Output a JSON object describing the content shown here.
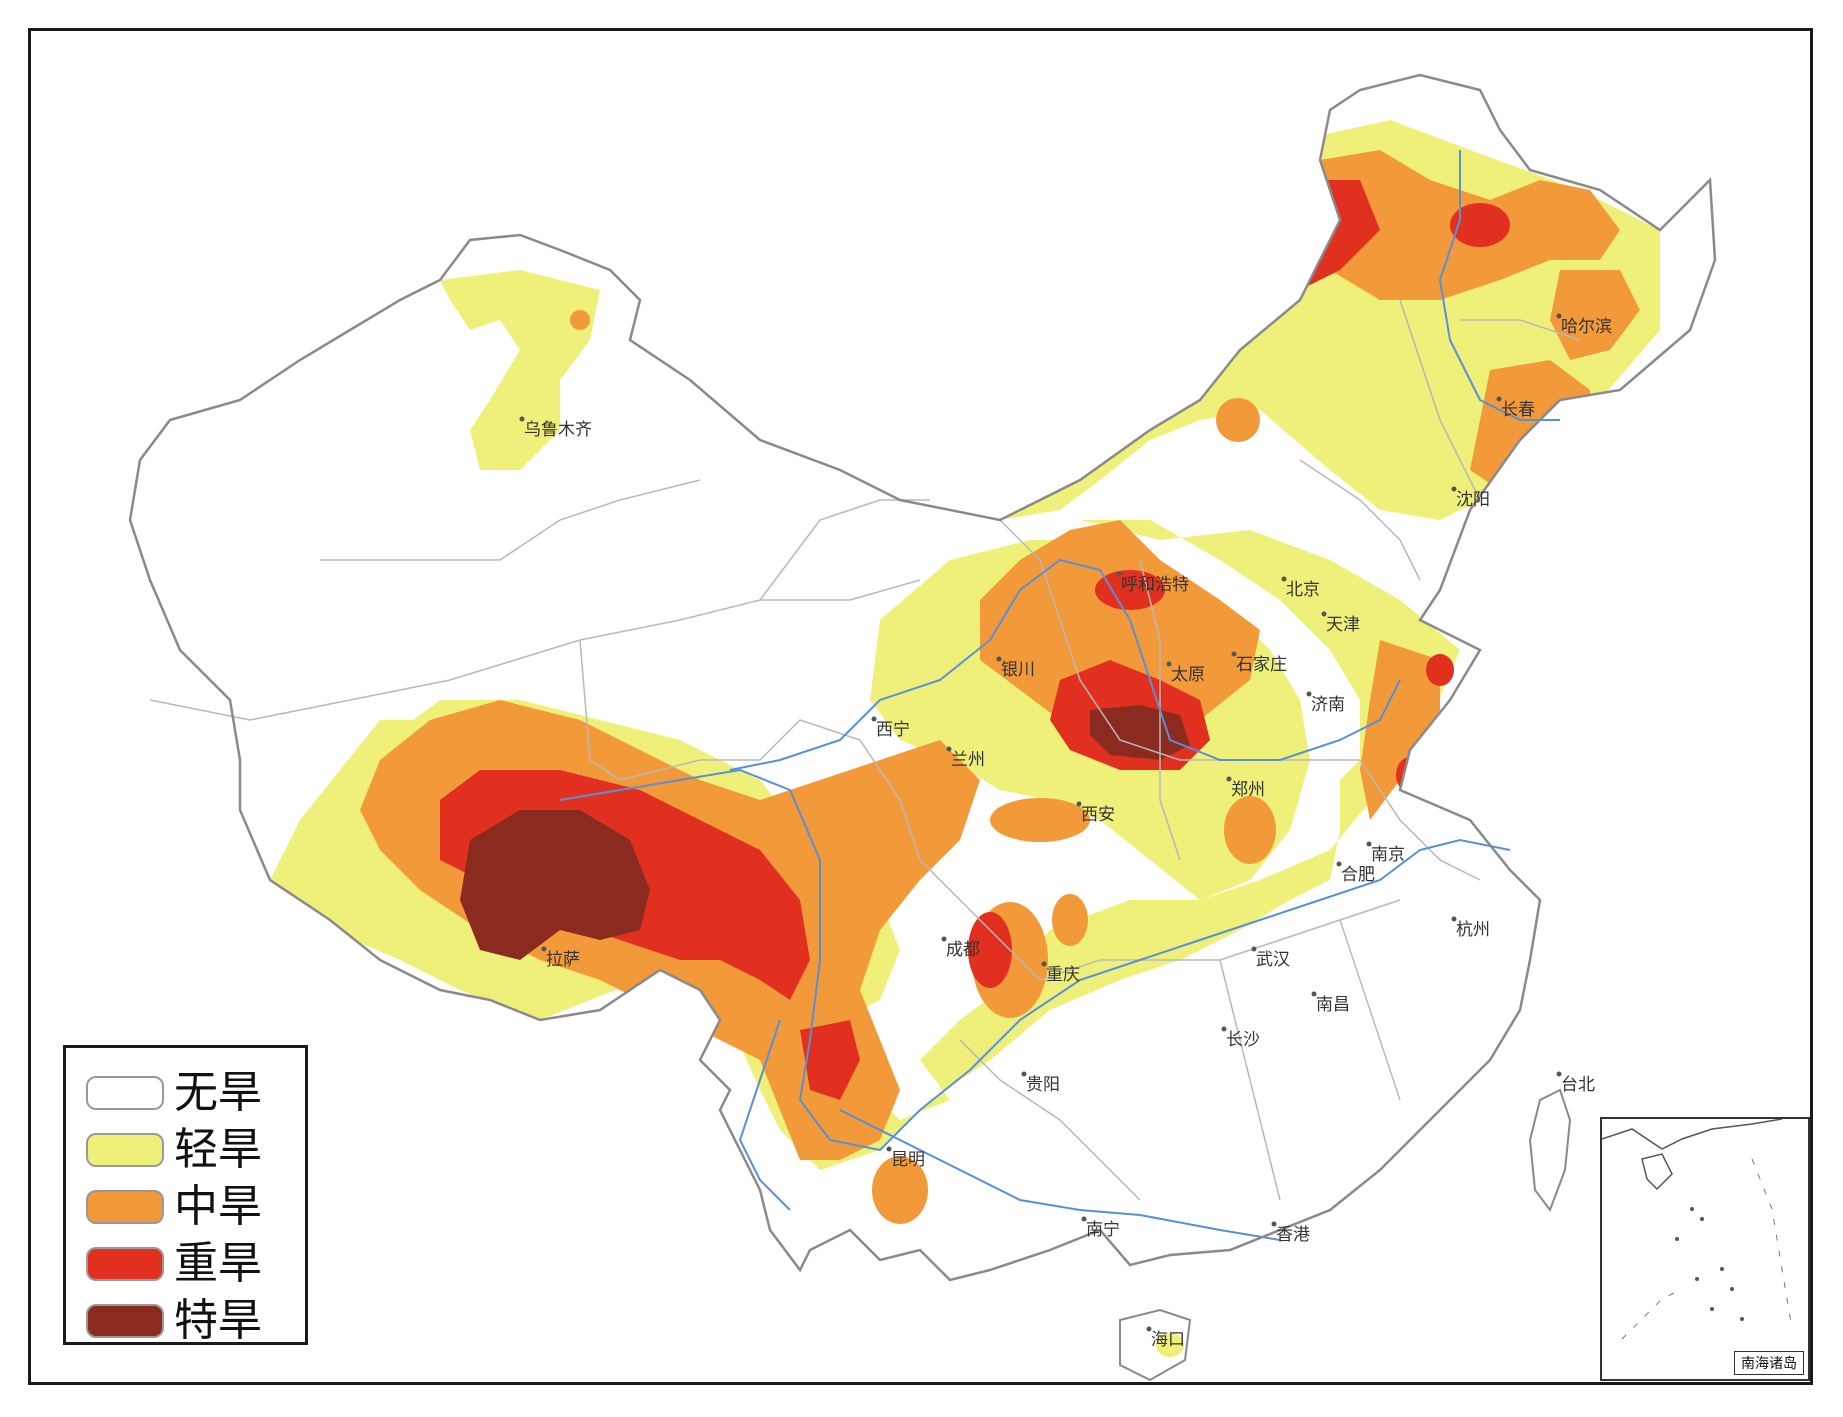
{
  "legend": {
    "items": [
      {
        "label": "无旱",
        "color": "#ffffff"
      },
      {
        "label": "轻旱",
        "color": "#eef07a"
      },
      {
        "label": "中旱",
        "color": "#f29a3a"
      },
      {
        "label": "重旱",
        "color": "#e23020"
      },
      {
        "label": "特旱",
        "color": "#8b2a1e"
      }
    ]
  },
  "cities": [
    {
      "id": "wulumuqi",
      "name": "乌鲁木齐"
    },
    {
      "id": "lasa",
      "name": "拉萨"
    },
    {
      "id": "xining",
      "name": "西宁"
    },
    {
      "id": "lanzhou",
      "name": "兰州"
    },
    {
      "id": "yinchuan",
      "name": "银川"
    },
    {
      "id": "huhehaote",
      "name": "呼和浩特"
    },
    {
      "id": "taiyuan",
      "name": "太原"
    },
    {
      "id": "shijiazhuang",
      "name": "石家庄"
    },
    {
      "id": "beijing",
      "name": "北京"
    },
    {
      "id": "tianjin",
      "name": "天津"
    },
    {
      "id": "jinan",
      "name": "济南"
    },
    {
      "id": "zhengzhou",
      "name": "郑州"
    },
    {
      "id": "xian",
      "name": "西安"
    },
    {
      "id": "chengdu",
      "name": "成都"
    },
    {
      "id": "chongqing",
      "name": "重庆"
    },
    {
      "id": "guiyang",
      "name": "贵阳"
    },
    {
      "id": "kunming",
      "name": "昆明"
    },
    {
      "id": "nanning",
      "name": "南宁"
    },
    {
      "id": "changsha",
      "name": "长沙"
    },
    {
      "id": "wuhan",
      "name": "武汉"
    },
    {
      "id": "nanchang",
      "name": "南昌"
    },
    {
      "id": "hefei",
      "name": "合肥"
    },
    {
      "id": "nanjing",
      "name": "南京"
    },
    {
      "id": "hangzhou",
      "name": "杭州"
    },
    {
      "id": "taibei",
      "name": "台北"
    },
    {
      "id": "xianggang",
      "name": "香港"
    },
    {
      "id": "haikou",
      "name": "海口"
    },
    {
      "id": "shenyang",
      "name": "沈阳"
    },
    {
      "id": "changchun",
      "name": "长春"
    },
    {
      "id": "haerbin",
      "name": "哈尔滨"
    }
  ],
  "inset": {
    "caption": "南海诸岛"
  }
}
